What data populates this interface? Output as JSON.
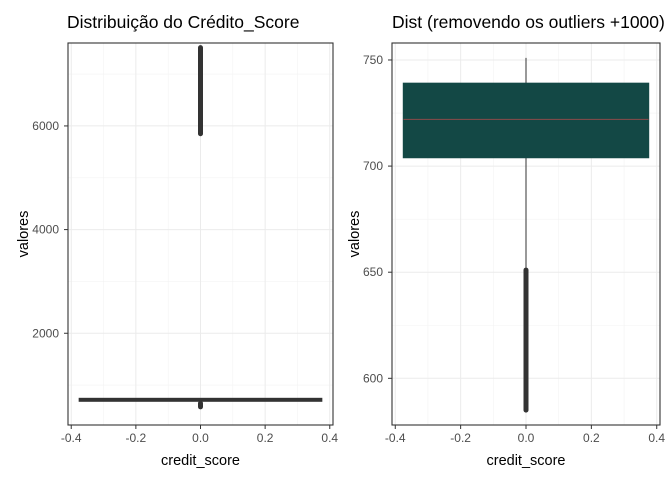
{
  "chart_data": [
    {
      "type": "boxplot",
      "title": "Distribuição do Crédito_Score",
      "xlabel": "credit_score",
      "ylabel": "valores",
      "xlim": [
        -0.41,
        0.41
      ],
      "ylim": [
        230,
        7600
      ],
      "x_ticks": [
        -0.4,
        -0.2,
        0.0,
        0.2,
        0.4
      ],
      "x_tick_labels": [
        "-0.4",
        "-0.2",
        "0.0",
        "0.2",
        "0.4"
      ],
      "y_ticks": [
        2000,
        4000,
        6000
      ],
      "y_tick_labels": [
        "2000",
        "4000",
        "6000"
      ],
      "box": {
        "x": 0,
        "width": 0.75,
        "q1": 690,
        "median": 722,
        "q3": 742,
        "whisker_low": 650,
        "whisker_high": 750,
        "fill": "#ffffff",
        "outline": "#333333"
      },
      "outlier_ranges": [
        [
          5850,
          7510
        ],
        [
          580,
          650
        ]
      ],
      "grid": true
    },
    {
      "type": "boxplot",
      "title": "Dist (removendo os outliers +1000)",
      "xlabel": "credit_score",
      "ylabel": "valores",
      "xlim": [
        -0.41,
        0.41
      ],
      "ylim": [
        578,
        758
      ],
      "x_ticks": [
        -0.4,
        -0.2,
        0.0,
        0.2,
        0.4
      ],
      "x_tick_labels": [
        "-0.4",
        "-0.2",
        "0.0",
        "0.2",
        "0.4"
      ],
      "y_ticks": [
        600,
        650,
        700,
        750
      ],
      "y_tick_labels": [
        "600",
        "650",
        "700",
        "750"
      ],
      "box": {
        "x": 0,
        "width": 0.75,
        "q1": 704,
        "median": 722,
        "q3": 739,
        "whisker_low": 651,
        "whisker_high": 751,
        "fill": "#134845",
        "outline": "#134845",
        "median_color": "#8b4a4a"
      },
      "outlier_ranges": [
        [
          585,
          651
        ]
      ],
      "grid": true
    }
  ]
}
